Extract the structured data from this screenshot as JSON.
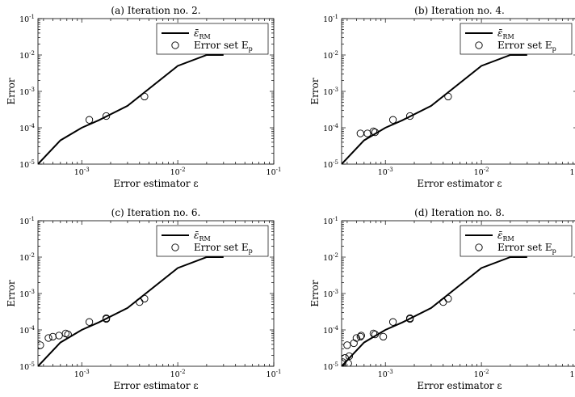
{
  "chart_data": [
    {
      "type": "line",
      "title": "(a) Iteration no. 2.",
      "xlabel": "Error estimator ε",
      "ylabel": "Error",
      "xscale": "log",
      "yscale": "log",
      "xlim": [
        0.00035,
        0.1
      ],
      "ylim": [
        1e-05,
        0.1
      ],
      "x_tick_labels": [
        "10^-3",
        "10^-2",
        "10^-1"
      ],
      "y_tick_labels": [
        "10^-5",
        "10^-4",
        "10^-3",
        "10^-2",
        "10^-1"
      ],
      "legend_position": "top-right",
      "series": [
        {
          "name": "ε̄_RM",
          "kind": "line",
          "x": [
            0.00035,
            0.0006,
            0.001,
            0.0015,
            0.003,
            0.01,
            0.02,
            0.03
          ],
          "y": [
            1e-05,
            4.5e-05,
            0.0001,
            0.00016,
            0.0004,
            0.005,
            0.01,
            0.01
          ]
        },
        {
          "name": "Error set E_p",
          "kind": "scatter",
          "x": [
            0.0012,
            0.0018,
            0.0045
          ],
          "y": [
            0.000165,
            0.00021,
            0.00072
          ]
        }
      ]
    },
    {
      "type": "line",
      "title": "(b) Iteration no. 4.",
      "xlabel": "Error estimator ε",
      "ylabel": "Error",
      "xscale": "log",
      "yscale": "log",
      "xlim": [
        0.00035,
        0.1
      ],
      "ylim": [
        1e-05,
        0.1
      ],
      "x_tick_labels": [
        "10^-3",
        "10^-2",
        "10^-1"
      ],
      "y_tick_labels": [
        "10^-5",
        "10^-4",
        "10^-3",
        "10^-2",
        "10^-1"
      ],
      "legend_position": "top-right",
      "series": [
        {
          "name": "ε̄_RM",
          "kind": "line",
          "x": [
            0.00035,
            0.0006,
            0.001,
            0.0015,
            0.003,
            0.01,
            0.02,
            0.03
          ],
          "y": [
            1e-05,
            4.5e-05,
            0.0001,
            0.00016,
            0.0004,
            0.005,
            0.01,
            0.01
          ]
        },
        {
          "name": "Error set E_p",
          "kind": "scatter",
          "x": [
            0.00055,
            0.00065,
            0.00075,
            0.00078,
            0.0012,
            0.0018,
            0.0045
          ],
          "y": [
            7e-05,
            7e-05,
            8e-05,
            7.5e-05,
            0.000165,
            0.00021,
            0.00072
          ]
        }
      ]
    },
    {
      "type": "line",
      "title": "(c) Iteration no. 6.",
      "xlabel": "Error estimator ε",
      "ylabel": "Error",
      "xscale": "log",
      "yscale": "log",
      "xlim": [
        0.00035,
        0.1
      ],
      "ylim": [
        1e-05,
        0.1
      ],
      "x_tick_labels": [
        "10^-3",
        "10^-2",
        "10^-1"
      ],
      "y_tick_labels": [
        "10^-5",
        "10^-4",
        "10^-3",
        "10^-2",
        "10^-1"
      ],
      "legend_position": "top-right",
      "series": [
        {
          "name": "ε̄_RM",
          "kind": "line",
          "x": [
            0.00035,
            0.0006,
            0.001,
            0.0015,
            0.003,
            0.01,
            0.02,
            0.03
          ],
          "y": [
            1e-05,
            4.5e-05,
            0.0001,
            0.00016,
            0.0004,
            0.005,
            0.01,
            0.01
          ]
        },
        {
          "name": "Error set E_p",
          "kind": "scatter",
          "x": [
            0.00037,
            0.00045,
            0.0005,
            0.00058,
            0.00068,
            0.00072,
            0.0012,
            0.0018,
            0.0018,
            0.004,
            0.0045
          ],
          "y": [
            3.8e-05,
            6e-05,
            6.5e-05,
            7e-05,
            8e-05,
            7.5e-05,
            0.000165,
            0.0002,
            0.00021,
            0.00058,
            0.00072
          ]
        }
      ]
    },
    {
      "type": "line",
      "title": "(d) Iteration no. 8.",
      "xlabel": "Error estimator ε",
      "ylabel": "Error",
      "xscale": "log",
      "yscale": "log",
      "xlim": [
        0.00035,
        0.1
      ],
      "ylim": [
        1e-05,
        0.1
      ],
      "x_tick_labels": [
        "10^-3",
        "10^-2",
        "10^-1"
      ],
      "y_tick_labels": [
        "10^-5",
        "10^-4",
        "10^-3",
        "10^-2",
        "10^-1"
      ],
      "legend_position": "top-right",
      "series": [
        {
          "name": "ε̄_RM",
          "kind": "line",
          "x": [
            0.00035,
            0.0006,
            0.001,
            0.0015,
            0.003,
            0.01,
            0.02,
            0.03
          ],
          "y": [
            1e-05,
            4.5e-05,
            0.0001,
            0.00016,
            0.0004,
            0.005,
            0.01,
            0.01
          ]
        },
        {
          "name": "Error set E_p",
          "kind": "scatter",
          "x": [
            0.00036,
            0.00038,
            0.0004,
            0.00041,
            0.00042,
            0.00047,
            0.0005,
            0.00055,
            0.00056,
            0.00075,
            0.00078,
            0.00095,
            0.0012,
            0.0018,
            0.0018,
            0.004,
            0.0045
          ],
          "y": [
            1.3e-05,
            1.7e-05,
            3.8e-05,
            1.2e-05,
            1.9e-05,
            4.3e-05,
            6e-05,
            6.5e-05,
            7e-05,
            8e-05,
            7.5e-05,
            6.5e-05,
            0.000165,
            0.0002,
            0.00021,
            0.00058,
            0.00072
          ]
        }
      ]
    }
  ]
}
